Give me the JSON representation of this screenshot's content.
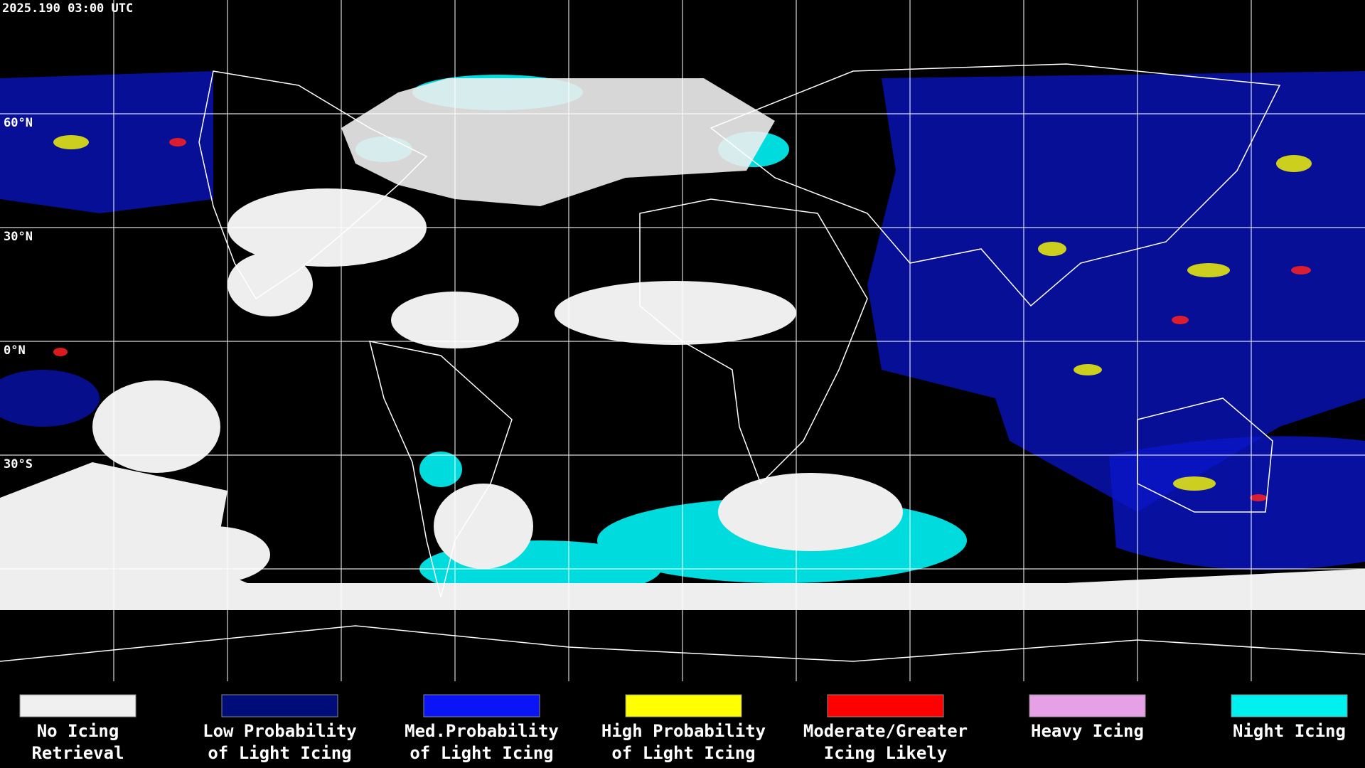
{
  "header": {
    "title": "2025.190 03:00 UTC"
  },
  "map": {
    "lat_labels": [
      "60°N",
      "30°N",
      "0°N",
      "30°S"
    ]
  },
  "legend": {
    "items": [
      {
        "color": "#f0f0f0",
        "lines": [
          "No Icing",
          "Retrieval"
        ]
      },
      {
        "color": "#000c78",
        "lines": [
          "Low Probability",
          "of Light Icing"
        ]
      },
      {
        "color": "#0a14f5",
        "lines": [
          "Med.Probability",
          "of Light Icing"
        ]
      },
      {
        "color": "#ffff00",
        "lines": [
          "High Probability",
          "of Light Icing"
        ]
      },
      {
        "color": "#ff0000",
        "lines": [
          "Moderate/Greater",
          "Icing Likely"
        ]
      },
      {
        "color": "#e6a0e6",
        "lines": [
          "Heavy Icing"
        ]
      },
      {
        "color": "#00f0f0",
        "lines": [
          "Night Icing"
        ]
      }
    ]
  }
}
